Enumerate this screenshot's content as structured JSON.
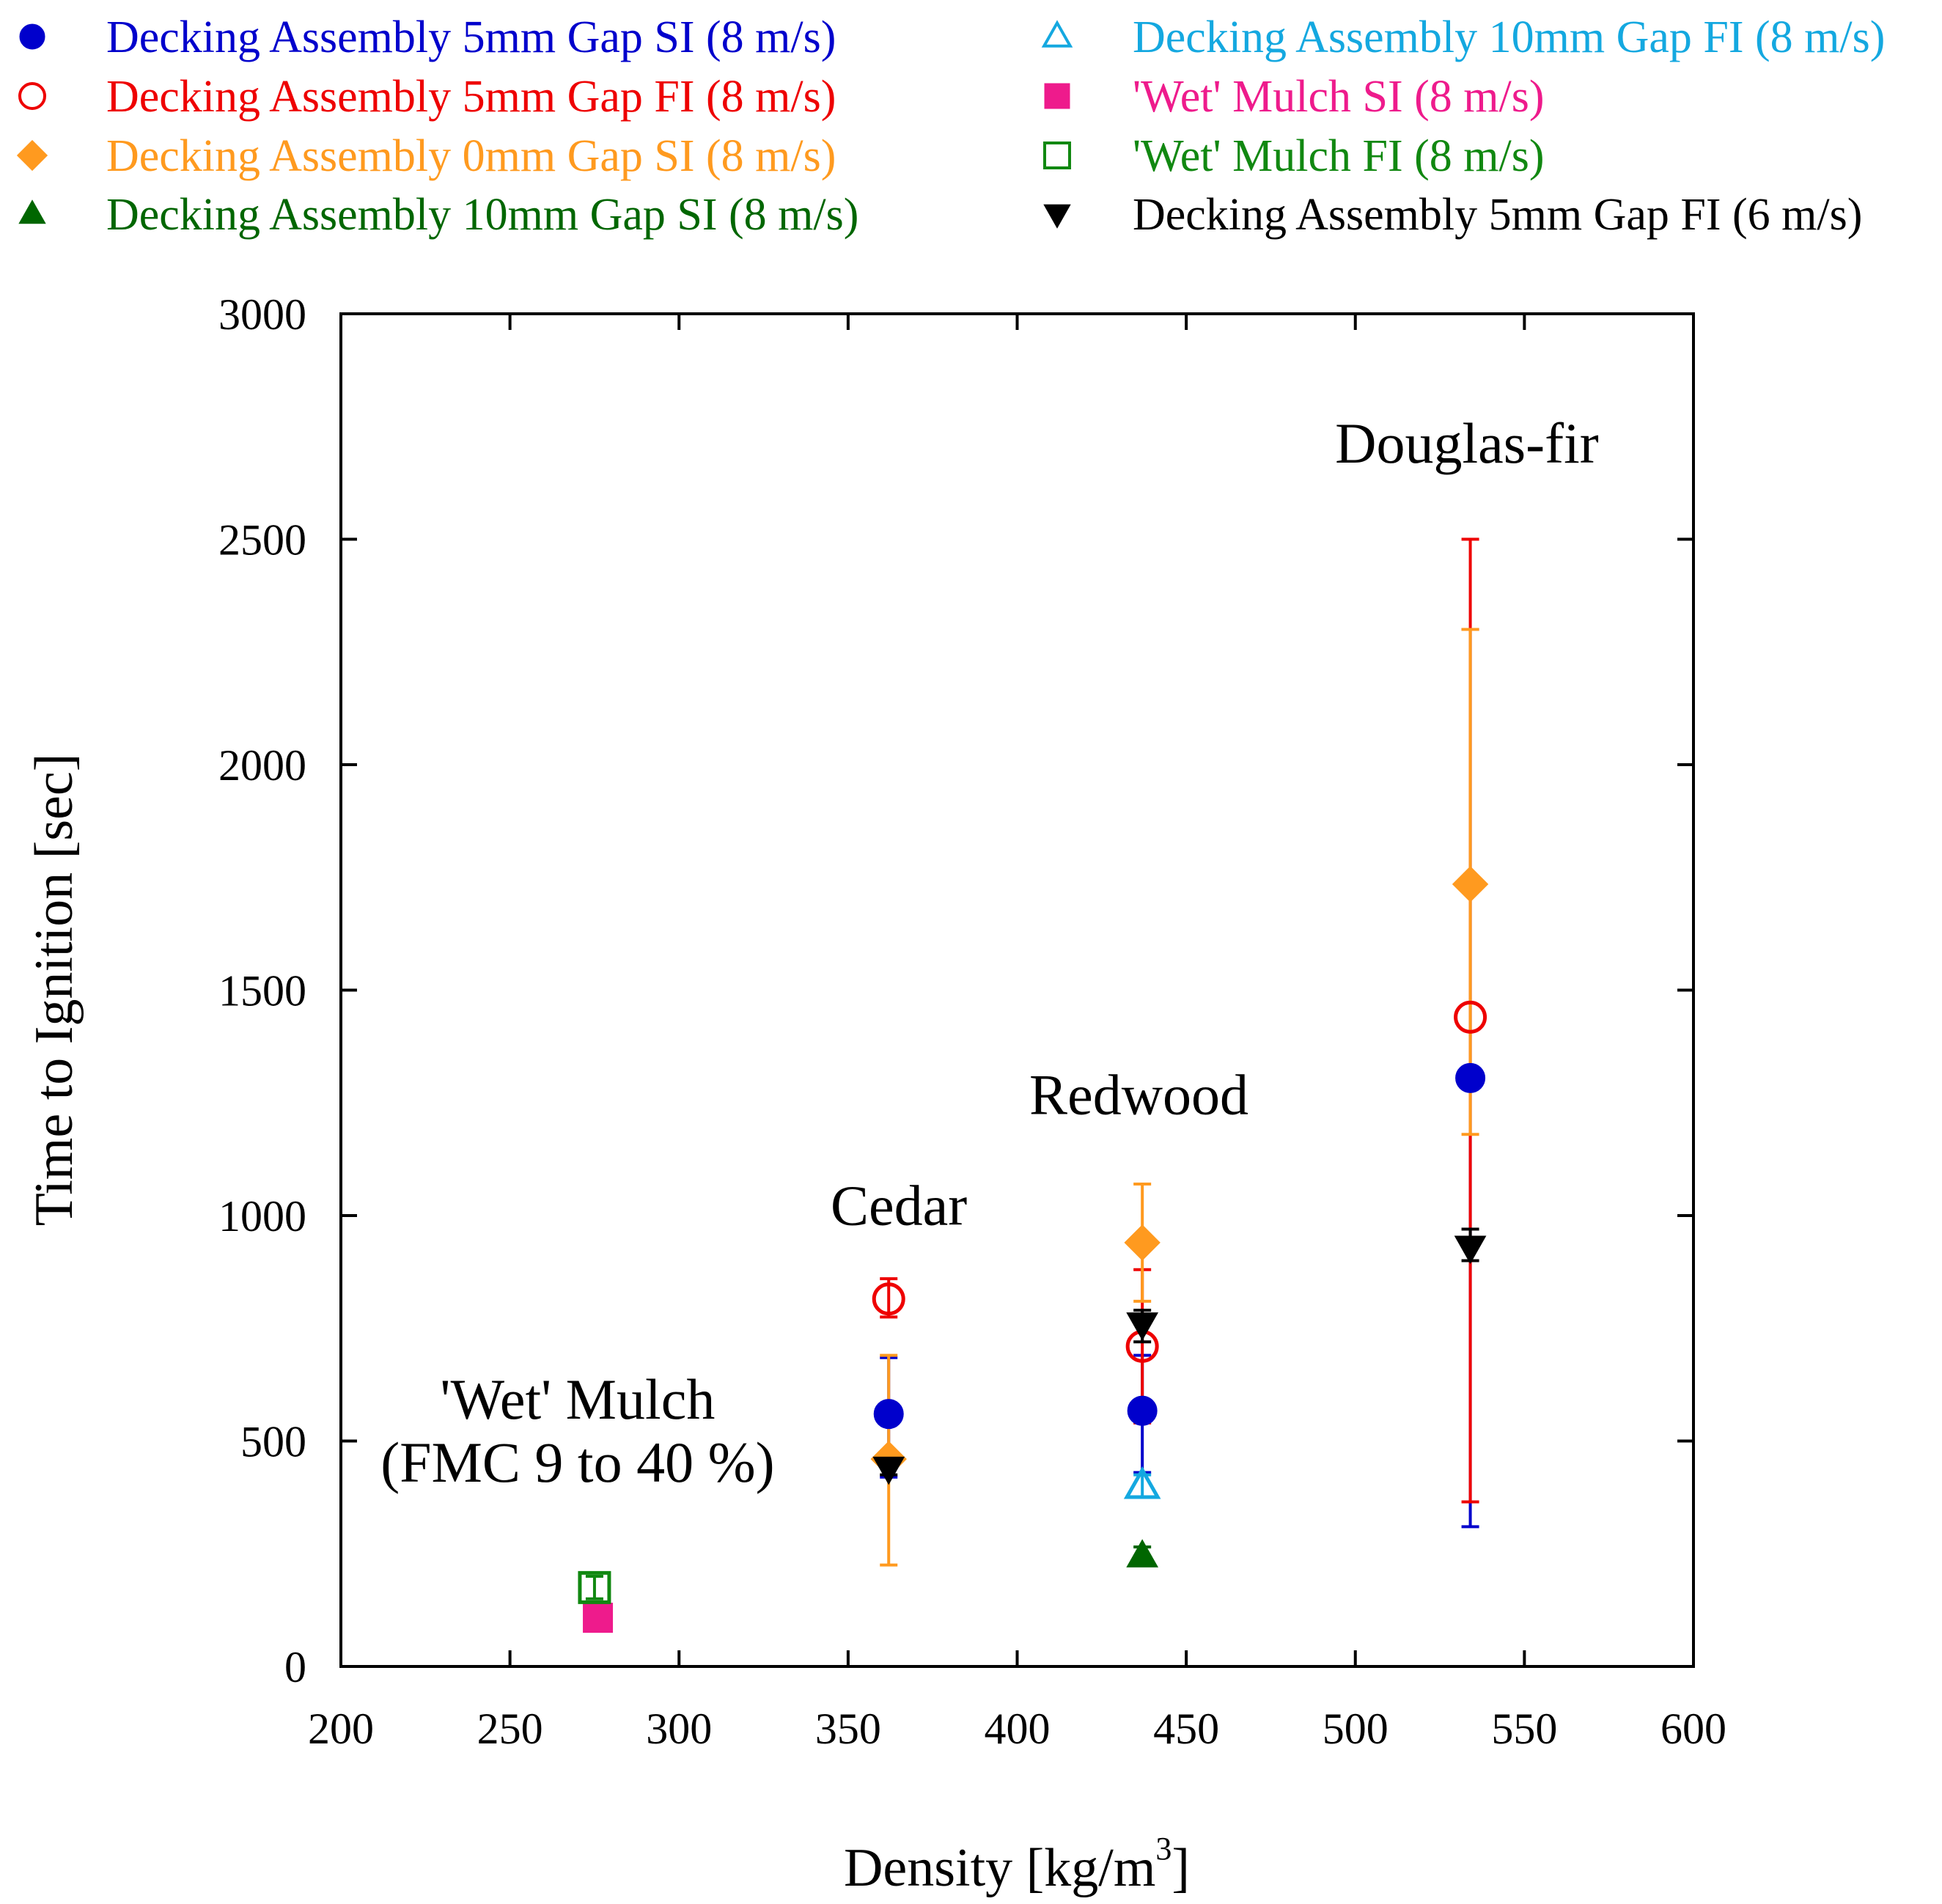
{
  "chart_data": {
    "type": "scatter",
    "title": "",
    "xlabel": "Density [kg/m",
    "xlabel_sup": "3",
    "xlabel_end": "]",
    "ylabel": "Time to Ignition [sec]",
    "xlim": [
      200,
      600
    ],
    "ylim": [
      0,
      3000
    ],
    "xticks": [
      200,
      250,
      300,
      350,
      400,
      450,
      500,
      550,
      600
    ],
    "yticks": [
      0,
      500,
      1000,
      1500,
      2000,
      2500,
      3000
    ],
    "grid": false,
    "legend_position": "top",
    "annotations": [
      {
        "lines": [
          "Douglas-fir"
        ],
        "x": 533,
        "y": 2670
      },
      {
        "lines": [
          "Redwood"
        ],
        "x": 436,
        "y": 1225
      },
      {
        "lines": [
          "Cedar"
        ],
        "x": 365,
        "y": 980
      },
      {
        "lines": [
          "'Wet' Mulch",
          "(FMC 9 to 40 %)"
        ],
        "x": 270,
        "y": 550
      }
    ],
    "series": [
      {
        "name": "Decking Assembly 5mm Gap SI (8 m/s)",
        "color": "#0000cc",
        "marker": "circle",
        "filled": true,
        "points": [
          {
            "x": 362,
            "y": 560,
            "lo": 420,
            "hi": 685
          },
          {
            "x": 437,
            "y": 567,
            "lo": 430,
            "hi": 690
          },
          {
            "x": 534,
            "y": 1305,
            "lo": 310,
            "hi": 2300
          }
        ]
      },
      {
        "name": "Decking Assembly 5mm Gap  FI (8 m/s)",
        "color": "#ee0000",
        "marker": "circle",
        "filled": false,
        "points": [
          {
            "x": 362,
            "y": 815,
            "lo": 775,
            "hi": 860
          },
          {
            "x": 437,
            "y": 710,
            "lo": 540,
            "hi": 880
          },
          {
            "x": 534,
            "y": 1440,
            "lo": 365,
            "hi": 2500
          }
        ]
      },
      {
        "name": "Decking Assembly 0mm Gap  SI (8 m/s)",
        "color": "#ff9a1f",
        "marker": "diamond",
        "filled": true,
        "points": [
          {
            "x": 362,
            "y": 460,
            "lo": 225,
            "hi": 690
          },
          {
            "x": 437,
            "y": 940,
            "lo": 810,
            "hi": 1070
          },
          {
            "x": 534,
            "y": 1735,
            "lo": 1180,
            "hi": 2300
          }
        ]
      },
      {
        "name": "Decking Assembly 10mm Gap SI (8 m/s)",
        "color": "#006600",
        "marker": "triangle-up",
        "filled": true,
        "points": [
          {
            "x": 437,
            "y": 245,
            "lo": 225,
            "hi": 265
          }
        ]
      },
      {
        "name": "Decking Assembly 10mm Gap FI (8 m/s)",
        "color": "#14a8e0",
        "marker": "triangle-up",
        "filled": false,
        "points": [
          {
            "x": 437,
            "y": 400,
            "lo": 375,
            "hi": 425
          }
        ]
      },
      {
        "name": "'Wet' Mulch SI (8 m/s)",
        "color": "#ee1b8c",
        "marker": "square",
        "filled": true,
        "points": [
          {
            "x": 276,
            "y": 108,
            "lo": 100,
            "hi": 116
          }
        ]
      },
      {
        "name": "'Wet' Mulch FI (8 m/s)",
        "color": "#118811",
        "marker": "square",
        "filled": false,
        "points": [
          {
            "x": 275,
            "y": 175,
            "lo": 150,
            "hi": 200
          }
        ]
      },
      {
        "name": "Decking Assembly 5mm Gap FI (6 m/s)",
        "color": "#000000",
        "marker": "triangle-down",
        "filled": true,
        "points": [
          {
            "x": 362,
            "y": 440,
            "lo": 425,
            "hi": 460
          },
          {
            "x": 437,
            "y": 760,
            "lo": 720,
            "hi": 790
          },
          {
            "x": 534,
            "y": 930,
            "lo": 900,
            "hi": 970
          }
        ]
      }
    ]
  }
}
